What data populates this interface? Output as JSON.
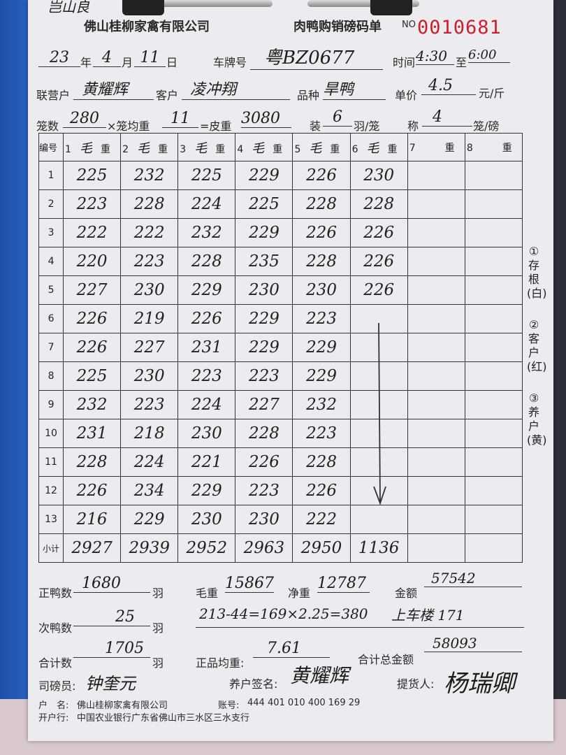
{
  "corner_note": "岂山良",
  "company": "佛山桂柳家禽有限公司",
  "form_title": "肉鸭购销磅码单",
  "no_label": "NO",
  "serial_no": "0010681",
  "header": {
    "year": "23",
    "year_label": "年",
    "month": "4",
    "month_label": "月",
    "day": "11",
    "day_label": "日",
    "plate_label": "车牌号",
    "plate": "粤BZ0677",
    "time_label": "时间",
    "time_from": "4:30",
    "time_to_label": "至",
    "time_to": "6:00",
    "partner_label": "联营户",
    "partner": "黄耀辉",
    "customer_label": "客户",
    "customer": "凌冲翔",
    "breed_label": "品种",
    "breed": "旱鸭",
    "price_label": "单价",
    "price": "4.5",
    "price_unit": "元/斤",
    "cages_label": "笼数",
    "cages": "280",
    "avg_label": "×笼均重",
    "avg": "11",
    "tare_label": "=皮重",
    "tare": "3080",
    "pack_label": "装",
    "pack": "6",
    "pack_unit": "羽/笼",
    "weigh_label": "称",
    "weigh": "4",
    "weigh_unit": "笼/磅"
  },
  "table": {
    "id_header": "编号",
    "columns": [
      {
        "n": "1",
        "hw": "毛",
        "suffix": "重"
      },
      {
        "n": "2",
        "hw": "毛",
        "suffix": "重"
      },
      {
        "n": "3",
        "hw": "毛",
        "suffix": "重"
      },
      {
        "n": "4",
        "hw": "毛",
        "suffix": "重"
      },
      {
        "n": "5",
        "hw": "毛",
        "suffix": "重"
      },
      {
        "n": "6",
        "hw": "毛",
        "suffix": "重"
      },
      {
        "n": "7",
        "hw": "",
        "suffix": "重"
      },
      {
        "n": "8",
        "hw": "",
        "suffix": "重"
      }
    ],
    "rows": [
      {
        "id": "1",
        "v": [
          "225",
          "232",
          "225",
          "229",
          "226",
          "230",
          "",
          ""
        ]
      },
      {
        "id": "2",
        "v": [
          "223",
          "228",
          "224",
          "225",
          "228",
          "228",
          "",
          ""
        ]
      },
      {
        "id": "3",
        "v": [
          "222",
          "222",
          "232",
          "229",
          "226",
          "226",
          "",
          ""
        ]
      },
      {
        "id": "4",
        "v": [
          "220",
          "223",
          "228",
          "235",
          "228",
          "226",
          "",
          ""
        ]
      },
      {
        "id": "5",
        "v": [
          "227",
          "230",
          "229",
          "230",
          "230",
          "226",
          "",
          ""
        ]
      },
      {
        "id": "6",
        "v": [
          "226",
          "219",
          "226",
          "229",
          "223",
          "",
          "",
          ""
        ]
      },
      {
        "id": "7",
        "v": [
          "226",
          "227",
          "231",
          "229",
          "229",
          "",
          "",
          ""
        ]
      },
      {
        "id": "8",
        "v": [
          "225",
          "230",
          "223",
          "223",
          "229",
          "",
          "",
          ""
        ]
      },
      {
        "id": "9",
        "v": [
          "232",
          "223",
          "224",
          "227",
          "232",
          "",
          "",
          ""
        ]
      },
      {
        "id": "10",
        "v": [
          "231",
          "218",
          "230",
          "228",
          "223",
          "",
          "",
          ""
        ]
      },
      {
        "id": "11",
        "v": [
          "228",
          "224",
          "221",
          "226",
          "228",
          "",
          "",
          ""
        ]
      },
      {
        "id": "12",
        "v": [
          "226",
          "234",
          "229",
          "223",
          "226",
          "",
          "",
          ""
        ]
      },
      {
        "id": "13",
        "v": [
          "216",
          "229",
          "230",
          "230",
          "222",
          "",
          "",
          ""
        ]
      }
    ],
    "subtotal_label": "小计",
    "subtotals": [
      "2927",
      "2939",
      "2952",
      "2963",
      "2950",
      "1136",
      "",
      ""
    ]
  },
  "side_notes": [
    "①存根(白)",
    "②客户(红)",
    "③养户(黄)"
  ],
  "summary": {
    "good_label": "正鸭数",
    "good": "1680",
    "good_unit": "羽",
    "gross_label": "毛重",
    "gross": "15867",
    "net_label": "净重",
    "net": "12787",
    "amount_label": "金额",
    "amount": "57542",
    "second_label": "次鸭数",
    "second": "25",
    "second_unit": "羽",
    "calc_note": "213-44=169×2.25=380",
    "note2": "上车楼 171",
    "total_label": "合计数",
    "total": "1705",
    "total_unit": "羽",
    "avg_label": "正品均重:",
    "avg": "7.61",
    "grand_label": "合计总金额",
    "grand": "58093",
    "weigher_label": "司磅员:",
    "weigher": "钟奎元",
    "farmer_label": "养户签名:",
    "farmer": "黄耀辉",
    "picker_label": "提货人:",
    "picker": "杨瑞卿"
  },
  "bank": {
    "name_label": "户　名:",
    "name": "佛山桂柳家禽有限公司",
    "acct_label": "账号:",
    "acct": "444 401 010 400 169 29",
    "bank_label": "开户行:",
    "bank": "中国农业银行广东省佛山市三水区三水支行"
  }
}
